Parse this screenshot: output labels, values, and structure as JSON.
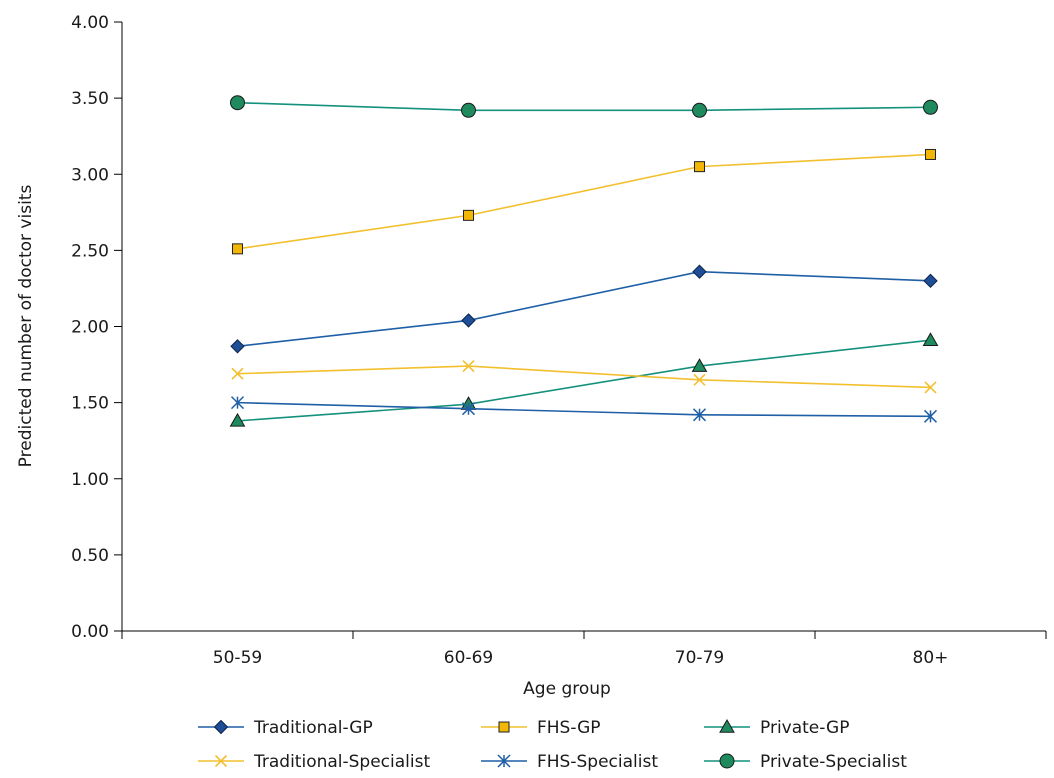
{
  "chart_data": {
    "type": "line",
    "xlabel": "Age group",
    "ylabel": "Predicted number of doctor visits",
    "categories": [
      "50-59",
      "60-69",
      "70-79",
      "80+"
    ],
    "ylim": [
      0,
      4
    ],
    "yticks": [
      "0.00",
      "0.50",
      "1.00",
      "1.50",
      "2.00",
      "2.50",
      "3.00",
      "3.50",
      "4.00"
    ],
    "grid": false,
    "legend_position": "bottom",
    "series": [
      {
        "name": "Traditional-GP",
        "marker": "diamond",
        "color": "#1f5fa6",
        "fill": "#1d4e96",
        "values": [
          1.87,
          2.04,
          2.36,
          2.3
        ]
      },
      {
        "name": "FHS-GP",
        "marker": "square",
        "color": "#f2c02e",
        "fill": "#f2b705",
        "values": [
          2.51,
          2.73,
          3.05,
          3.13
        ]
      },
      {
        "name": "Private-GP",
        "marker": "triangle",
        "color": "#14917c",
        "fill": "#1e8a5e",
        "values": [
          1.38,
          1.49,
          1.74,
          1.91
        ]
      },
      {
        "name": "Traditional-Specialist",
        "marker": "x",
        "color": "#f2c02e",
        "fill": "#f2c02e",
        "values": [
          1.69,
          1.74,
          1.65,
          1.6
        ]
      },
      {
        "name": "FHS-Specialist",
        "marker": "asterisk",
        "color": "#1f5fa6",
        "fill": "#1f5fa6",
        "values": [
          1.5,
          1.46,
          1.42,
          1.41
        ]
      },
      {
        "name": "Private-Specialist",
        "marker": "circle",
        "color": "#14917c",
        "fill": "#1e8a5e",
        "values": [
          3.47,
          3.42,
          3.42,
          3.44
        ]
      }
    ]
  }
}
